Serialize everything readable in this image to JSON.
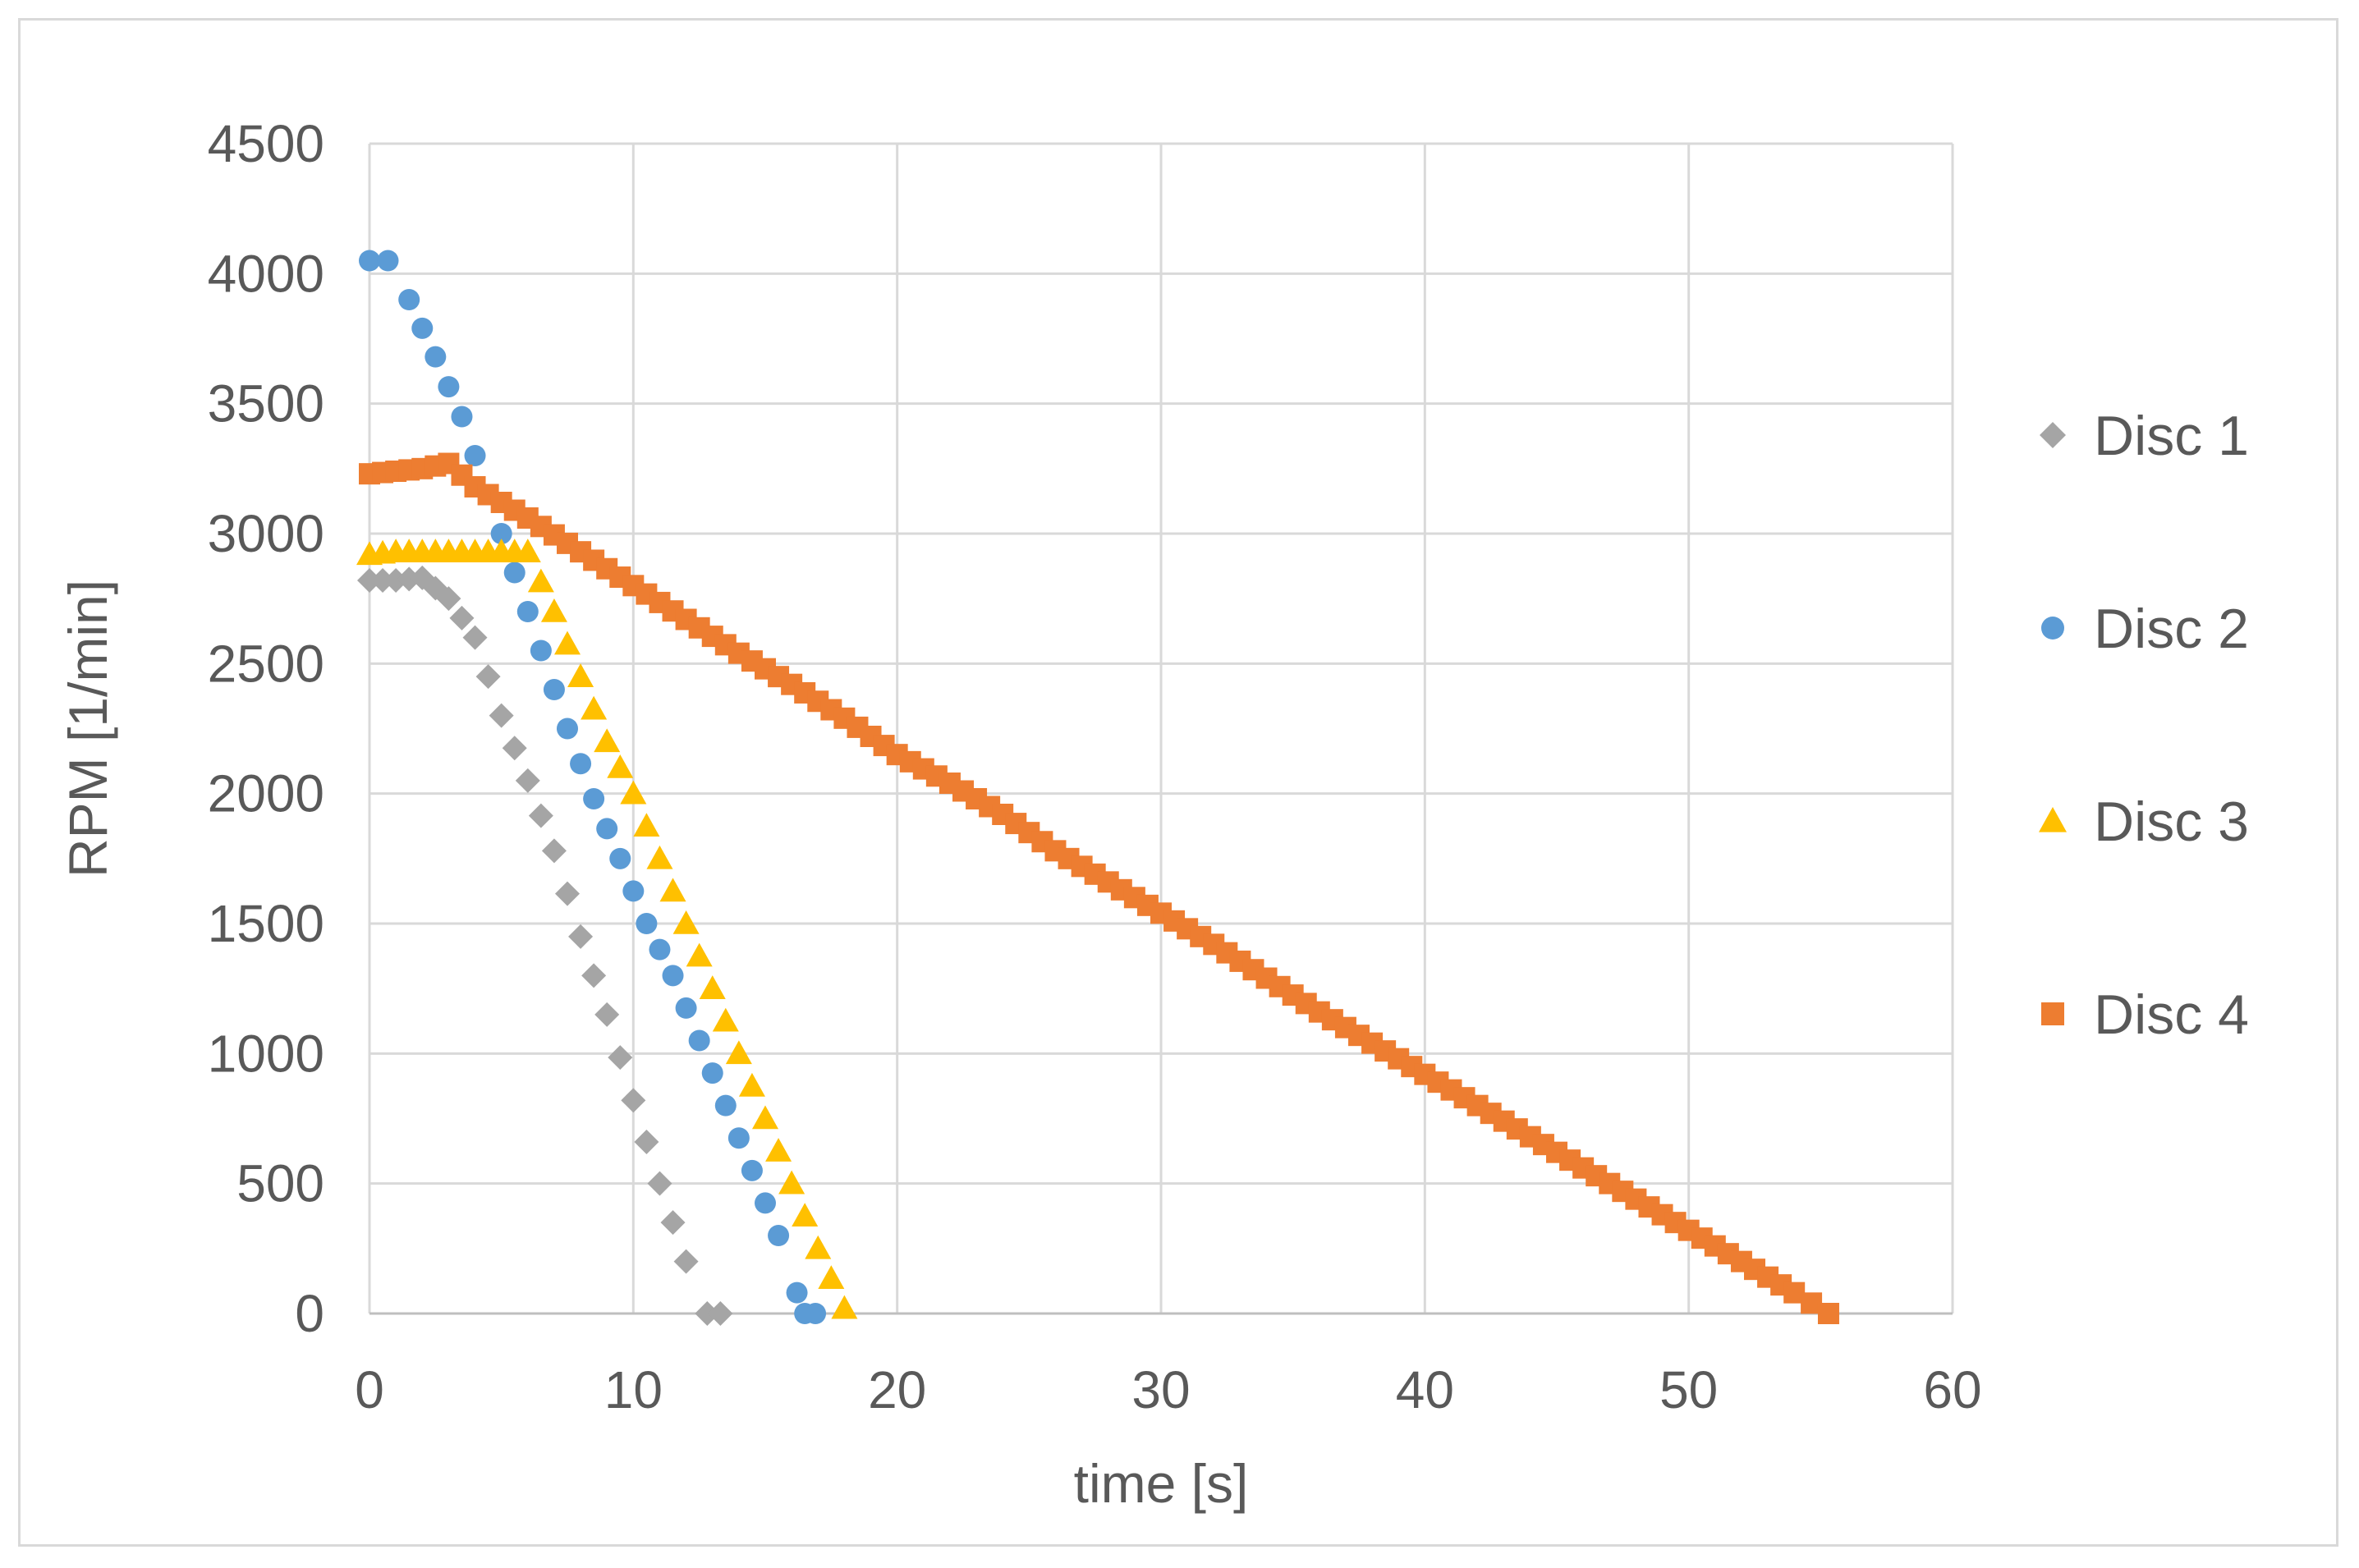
{
  "chart_data": {
    "type": "scatter",
    "title": "",
    "xlabel": "time [s]",
    "ylabel": "RPM [1/min]",
    "xlim": [
      0,
      60
    ],
    "ylim": [
      0,
      4500
    ],
    "xticks": [
      0,
      10,
      20,
      30,
      40,
      50,
      60
    ],
    "yticks": [
      0,
      500,
      1000,
      1500,
      2000,
      2500,
      3000,
      3500,
      4000,
      4500
    ],
    "grid": true,
    "legend_position": "right",
    "series": [
      {
        "name": "Disc 1",
        "marker": "diamond",
        "color": "#a5a5a5",
        "points": [
          [
            0,
            2820
          ],
          [
            1,
            2820
          ],
          [
            2,
            2830
          ],
          [
            3,
            2750
          ],
          [
            4,
            2600
          ],
          [
            5,
            2300
          ],
          [
            6,
            2050
          ],
          [
            7,
            1780
          ],
          [
            8,
            1450
          ],
          [
            9,
            1150
          ],
          [
            10,
            820
          ],
          [
            11,
            500
          ],
          [
            12,
            200
          ],
          [
            12.8,
            0
          ],
          [
            13.3,
            0
          ]
        ]
      },
      {
        "name": "Disc 2",
        "marker": "circle",
        "color": "#5b9bd5",
        "points": [
          [
            0,
            4050
          ],
          [
            0.7,
            4050
          ],
          [
            1.5,
            3900
          ],
          [
            2.5,
            3680
          ],
          [
            3.5,
            3450
          ],
          [
            4.5,
            3150
          ],
          [
            5.5,
            2850
          ],
          [
            6.5,
            2550
          ],
          [
            7.5,
            2250
          ],
          [
            8.5,
            1980
          ],
          [
            9.5,
            1750
          ],
          [
            10.5,
            1500
          ],
          [
            11.5,
            1300
          ],
          [
            12.5,
            1050
          ],
          [
            13.5,
            800
          ],
          [
            14.5,
            550
          ],
          [
            15.5,
            300
          ],
          [
            16.2,
            80
          ],
          [
            16.5,
            0
          ],
          [
            16.9,
            0
          ]
        ]
      },
      {
        "name": "Disc 3",
        "marker": "triangle",
        "color": "#ffc000",
        "points": [
          [
            0,
            2920
          ],
          [
            1,
            2930
          ],
          [
            2,
            2930
          ],
          [
            3,
            2930
          ],
          [
            4,
            2930
          ],
          [
            5,
            2930
          ],
          [
            6,
            2930
          ],
          [
            7,
            2700
          ],
          [
            8,
            2450
          ],
          [
            9,
            2200
          ],
          [
            10,
            2000
          ],
          [
            11,
            1750
          ],
          [
            12,
            1500
          ],
          [
            13,
            1250
          ],
          [
            14,
            1000
          ],
          [
            15,
            750
          ],
          [
            16,
            500
          ],
          [
            17,
            250
          ],
          [
            18,
            20
          ]
        ]
      },
      {
        "name": "Disc 4",
        "marker": "square",
        "color": "#ed7d31",
        "points": [
          [
            0,
            3230
          ],
          [
            1,
            3240
          ],
          [
            2,
            3250
          ],
          [
            3,
            3270
          ],
          [
            4,
            3180
          ],
          [
            6,
            3060
          ],
          [
            8,
            2930
          ],
          [
            10,
            2800
          ],
          [
            12,
            2670
          ],
          [
            14,
            2540
          ],
          [
            16,
            2420
          ],
          [
            18,
            2290
          ],
          [
            20,
            2150
          ],
          [
            22,
            2040
          ],
          [
            24,
            1920
          ],
          [
            26,
            1780
          ],
          [
            28,
            1660
          ],
          [
            30,
            1540
          ],
          [
            32,
            1420
          ],
          [
            34,
            1290
          ],
          [
            36,
            1160
          ],
          [
            38,
            1040
          ],
          [
            40,
            920
          ],
          [
            42,
            800
          ],
          [
            44,
            680
          ],
          [
            46,
            560
          ],
          [
            48,
            440
          ],
          [
            50,
            320
          ],
          [
            52,
            200
          ],
          [
            54,
            80
          ],
          [
            55.3,
            0
          ]
        ]
      }
    ]
  }
}
